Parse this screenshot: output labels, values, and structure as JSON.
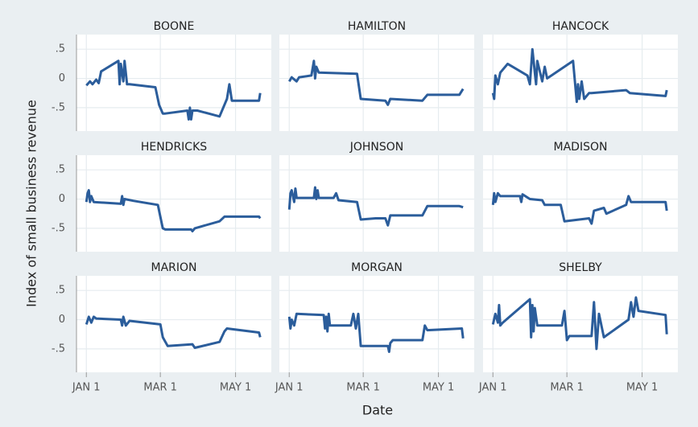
{
  "x_label": "Date",
  "y_label": "Index of small business revenue",
  "chart_data": [
    {
      "type": "line",
      "title": "BOONE",
      "color": "#2b5d9b",
      "xlim": [
        -8,
        150
      ],
      "ylim": [
        -0.9,
        0.75
      ],
      "xticks": [
        {
          "value": 0,
          "label": "JAN 1"
        },
        {
          "value": 60,
          "label": "MAR 1"
        },
        {
          "value": 121,
          "label": "MAY 1"
        }
      ],
      "yticks": [
        {
          "value": 0.5,
          "label": ".5"
        },
        0,
        {
          "value": -0.5,
          "label": "-.5"
        }
      ],
      "grid": true,
      "x": [
        0,
        3,
        5,
        8,
        10,
        12,
        26,
        27,
        28,
        30,
        31,
        33,
        35,
        56,
        59,
        62,
        64,
        82,
        83,
        84,
        85,
        86,
        90,
        108,
        114,
        116,
        118,
        140,
        141
      ],
      "values": [
        -0.12,
        -0.05,
        -0.1,
        -0.02,
        -0.08,
        0.12,
        0.3,
        -0.1,
        0.25,
        -0.05,
        0.3,
        -0.1,
        -0.1,
        -0.15,
        -0.45,
        -0.6,
        -0.6,
        -0.55,
        -0.7,
        -0.5,
        -0.7,
        -0.55,
        -0.55,
        -0.65,
        -0.35,
        -0.1,
        -0.38,
        -0.38,
        -0.25
      ]
    },
    {
      "type": "line",
      "title": "HAMILTON",
      "color": "#2b5d9b",
      "xlim": [
        -8,
        150
      ],
      "ylim": [
        -0.9,
        0.75
      ],
      "xticks": [
        {
          "value": 0,
          "label": "JAN 1"
        },
        {
          "value": 60,
          "label": "MAR 1"
        },
        {
          "value": 121,
          "label": "MAY 1"
        }
      ],
      "yticks": [
        {
          "value": 0.5,
          "label": ".5"
        },
        0,
        {
          "value": -0.5,
          "label": "-.5"
        }
      ],
      "grid": true,
      "x": [
        0,
        2,
        6,
        8,
        18,
        20,
        21,
        22,
        24,
        55,
        58,
        78,
        80,
        82,
        108,
        112,
        138,
        141
      ],
      "values": [
        -0.05,
        0.02,
        -0.05,
        0.02,
        0.05,
        0.3,
        0.0,
        0.2,
        0.1,
        0.08,
        -0.35,
        -0.38,
        -0.45,
        -0.35,
        -0.38,
        -0.28,
        -0.28,
        -0.18
      ]
    },
    {
      "type": "line",
      "title": "HANCOCK",
      "color": "#2b5d9b",
      "xlim": [
        -8,
        150
      ],
      "ylim": [
        -0.9,
        0.75
      ],
      "xticks": [
        {
          "value": 0,
          "label": "JAN 1"
        },
        {
          "value": 60,
          "label": "MAR 1"
        },
        {
          "value": 121,
          "label": "MAY 1"
        }
      ],
      "yticks": [
        {
          "value": 0.5,
          "label": ".5"
        },
        0,
        {
          "value": -0.5,
          "label": "-.5"
        }
      ],
      "grid": true,
      "x": [
        0,
        1,
        2,
        4,
        6,
        12,
        28,
        30,
        32,
        34,
        35,
        36,
        40,
        42,
        44,
        65,
        68,
        69,
        70,
        72,
        74,
        78,
        80,
        108,
        111,
        140,
        141
      ],
      "values": [
        -0.25,
        -0.35,
        0.05,
        -0.1,
        0.1,
        0.25,
        0.05,
        -0.1,
        0.5,
        0.1,
        -0.1,
        0.3,
        -0.05,
        0.2,
        0.0,
        0.3,
        -0.4,
        -0.1,
        -0.35,
        -0.05,
        -0.35,
        -0.25,
        -0.25,
        -0.2,
        -0.25,
        -0.3,
        -0.2
      ]
    },
    {
      "type": "line",
      "title": "HENDRICKS",
      "color": "#2b5d9b",
      "xlim": [
        -8,
        150
      ],
      "ylim": [
        -0.9,
        0.75
      ],
      "xticks": [
        {
          "value": 0,
          "label": "JAN 1"
        },
        {
          "value": 60,
          "label": "MAR 1"
        },
        {
          "value": 121,
          "label": "MAY 1"
        }
      ],
      "yticks": [
        {
          "value": 0.5,
          "label": ".5"
        },
        0,
        {
          "value": -0.5,
          "label": "-.5"
        }
      ],
      "grid": true,
      "x": [
        0,
        1,
        2,
        3,
        4,
        6,
        28,
        29,
        30,
        31,
        38,
        58,
        62,
        64,
        85,
        86,
        88,
        108,
        112,
        140,
        141
      ],
      "values": [
        -0.05,
        0.1,
        0.15,
        -0.05,
        0.05,
        -0.05,
        -0.08,
        0.05,
        -0.1,
        0.0,
        -0.03,
        -0.1,
        -0.5,
        -0.52,
        -0.52,
        -0.55,
        -0.5,
        -0.38,
        -0.3,
        -0.3,
        -0.33
      ]
    },
    {
      "type": "line",
      "title": "JOHNSON",
      "color": "#2b5d9b",
      "xlim": [
        -8,
        150
      ],
      "ylim": [
        -0.9,
        0.75
      ],
      "xticks": [
        {
          "value": 0,
          "label": "JAN 1"
        },
        {
          "value": 60,
          "label": "MAR 1"
        },
        {
          "value": 121,
          "label": "MAY 1"
        }
      ],
      "yticks": [
        {
          "value": 0.5,
          "label": ".5"
        },
        0,
        {
          "value": -0.5,
          "label": "-.5"
        }
      ],
      "grid": true,
      "x": [
        0,
        1,
        2,
        4,
        5,
        6,
        20,
        21,
        22,
        23,
        24,
        36,
        38,
        40,
        55,
        58,
        70,
        78,
        80,
        82,
        108,
        112,
        138,
        141
      ],
      "values": [
        -0.18,
        0.1,
        0.15,
        -0.05,
        0.18,
        0.02,
        0.02,
        0.2,
        0.0,
        0.15,
        0.02,
        0.02,
        0.1,
        -0.02,
        -0.05,
        -0.35,
        -0.33,
        -0.33,
        -0.45,
        -0.28,
        -0.28,
        -0.12,
        -0.12,
        -0.14
      ]
    },
    {
      "type": "line",
      "title": "MADISON",
      "color": "#2b5d9b",
      "xlim": [
        -8,
        150
      ],
      "ylim": [
        -0.9,
        0.75
      ],
      "xticks": [
        {
          "value": 0,
          "label": "JAN 1"
        },
        {
          "value": 60,
          "label": "MAR 1"
        },
        {
          "value": 121,
          "label": "MAY 1"
        }
      ],
      "yticks": [
        {
          "value": 0.5,
          "label": ".5"
        },
        0,
        {
          "value": -0.5,
          "label": "-.5"
        }
      ],
      "grid": true,
      "x": [
        0,
        1,
        2,
        4,
        6,
        22,
        23,
        24,
        30,
        40,
        42,
        55,
        58,
        78,
        80,
        82,
        90,
        92,
        108,
        110,
        112,
        140,
        141
      ],
      "values": [
        -0.1,
        0.1,
        -0.05,
        0.1,
        0.05,
        0.05,
        -0.05,
        0.08,
        0.0,
        -0.02,
        -0.1,
        -0.1,
        -0.38,
        -0.33,
        -0.42,
        -0.2,
        -0.15,
        -0.25,
        -0.1,
        0.05,
        -0.05,
        -0.05,
        -0.2
      ]
    },
    {
      "type": "line",
      "title": "MARION",
      "color": "#2b5d9b",
      "xlim": [
        -8,
        150
      ],
      "ylim": [
        -0.9,
        0.75
      ],
      "xticks": [
        {
          "value": 0,
          "label": "JAN 1"
        },
        {
          "value": 60,
          "label": "MAR 1"
        },
        {
          "value": 121,
          "label": "MAY 1"
        }
      ],
      "yticks": [
        {
          "value": 0.5,
          "label": ".5"
        },
        0,
        {
          "value": -0.5,
          "label": "-.5"
        }
      ],
      "grid": true,
      "x": [
        0,
        2,
        4,
        6,
        8,
        28,
        29,
        30,
        32,
        35,
        60,
        62,
        66,
        86,
        88,
        108,
        112,
        114,
        140,
        141
      ],
      "values": [
        -0.08,
        0.05,
        -0.05,
        0.05,
        0.02,
        0.0,
        -0.1,
        0.05,
        -0.1,
        -0.02,
        -0.08,
        -0.3,
        -0.45,
        -0.42,
        -0.48,
        -0.38,
        -0.2,
        -0.15,
        -0.22,
        -0.3
      ]
    },
    {
      "type": "line",
      "title": "MORGAN",
      "color": "#2b5d9b",
      "xlim": [
        -8,
        150
      ],
      "ylim": [
        -0.9,
        0.75
      ],
      "xticks": [
        {
          "value": 0,
          "label": "JAN 1"
        },
        {
          "value": 60,
          "label": "MAR 1"
        },
        {
          "value": 121,
          "label": "MAY 1"
        }
      ],
      "yticks": [
        {
          "value": 0.5,
          "label": ".5"
        },
        0,
        {
          "value": -0.5,
          "label": "-.5"
        }
      ],
      "grid": true,
      "x": [
        0,
        1,
        2,
        4,
        6,
        28,
        29,
        30,
        31,
        32,
        33,
        50,
        52,
        54,
        56,
        58,
        80,
        81,
        82,
        84,
        108,
        110,
        112,
        140,
        141
      ],
      "values": [
        0.05,
        -0.15,
        0.0,
        -0.1,
        0.1,
        0.08,
        -0.15,
        0.05,
        -0.2,
        0.1,
        -0.1,
        -0.1,
        0.1,
        -0.15,
        0.1,
        -0.45,
        -0.45,
        -0.55,
        -0.4,
        -0.35,
        -0.35,
        -0.1,
        -0.18,
        -0.15,
        -0.32
      ]
    },
    {
      "type": "line",
      "title": "SHELBY",
      "color": "#2b5d9b",
      "xlim": [
        -8,
        150
      ],
      "ylim": [
        -0.9,
        0.75
      ],
      "xticks": [
        {
          "value": 0,
          "label": "JAN 1"
        },
        {
          "value": 60,
          "label": "MAR 1"
        },
        {
          "value": 121,
          "label": "MAY 1"
        }
      ],
      "yticks": [
        {
          "value": 0.5,
          "label": ".5"
        },
        0,
        {
          "value": -0.5,
          "label": "-.5"
        }
      ],
      "grid": true,
      "x": [
        0,
        2,
        4,
        5,
        6,
        8,
        30,
        31,
        32,
        33,
        34,
        36,
        56,
        58,
        60,
        62,
        80,
        82,
        84,
        86,
        90,
        110,
        112,
        114,
        116,
        118,
        140,
        141
      ],
      "values": [
        -0.08,
        0.1,
        -0.05,
        0.25,
        -0.1,
        -0.05,
        0.35,
        -0.3,
        0.25,
        -0.2,
        0.2,
        -0.1,
        -0.1,
        0.15,
        -0.35,
        -0.28,
        -0.28,
        0.3,
        -0.5,
        0.1,
        -0.3,
        0.0,
        0.3,
        0.05,
        0.38,
        0.15,
        0.08,
        -0.25
      ]
    }
  ]
}
